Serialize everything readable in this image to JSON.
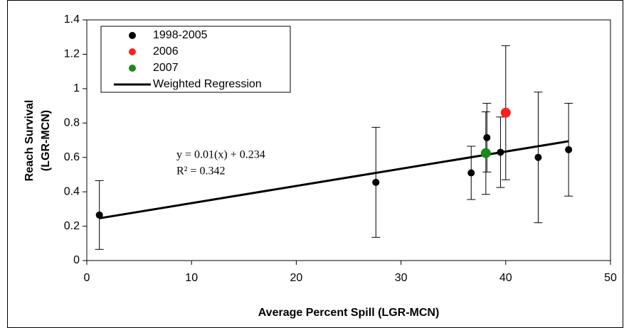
{
  "chart_data": {
    "type": "scatter",
    "x_label": "Average Percent Spill (LGR-MCN)",
    "y_label": [
      "Reach Survival",
      "(LGR-MCN)"
    ],
    "xlim": [
      0,
      50
    ],
    "xticks": [
      0,
      10,
      20,
      30,
      40,
      50
    ],
    "ylim": [
      0,
      1.4
    ],
    "yticks": [
      0,
      0.2,
      0.4,
      0.6,
      0.8,
      1,
      1.2,
      1.4
    ],
    "grid": false,
    "legend": "top-left",
    "annotation": [
      "y = 0.01(x) + 0.234",
      "R² = 0.342"
    ],
    "series": [
      {
        "name": "1998-2005",
        "color": "#000000",
        "kind": "scatter",
        "x": [
          1.2,
          27.6,
          36.7,
          38.2,
          39.5,
          43.1,
          46.0
        ],
        "values": [
          0.265,
          0.455,
          0.51,
          0.715,
          0.63,
          0.6,
          0.645
        ],
        "errors": [
          0.2,
          0.32,
          0.155,
          0.2,
          0.205,
          0.38,
          0.27
        ]
      },
      {
        "name": "2006",
        "color": "#ff2020",
        "kind": "scatter",
        "x": [
          40.0
        ],
        "values": [
          0.86
        ],
        "errors": [
          0.39
        ]
      },
      {
        "name": "2007",
        "color": "#1a8a1a",
        "kind": "scatter",
        "x": [
          38.1
        ],
        "values": [
          0.625
        ],
        "errors": [
          0.24
        ]
      },
      {
        "name": "Weighted Regression",
        "color": "#000000",
        "kind": "line",
        "x": [
          1.2,
          46.0
        ],
        "values": [
          0.246,
          0.694
        ]
      }
    ]
  }
}
